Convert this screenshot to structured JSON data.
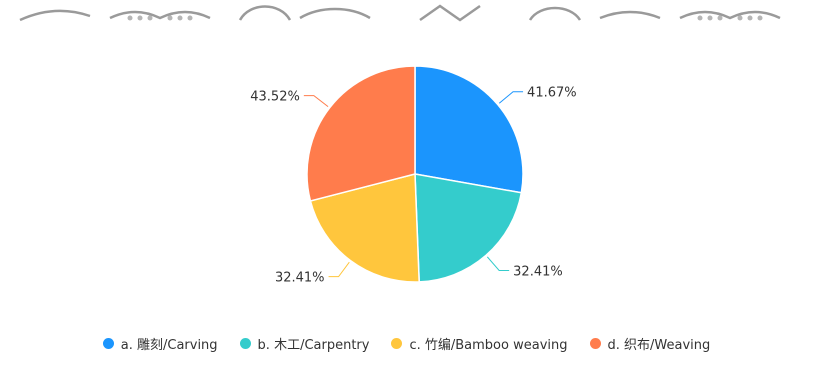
{
  "chart_data": {
    "type": "pie",
    "slices": [
      {
        "name": "a. 雕刻/Carving",
        "value": 41.67,
        "label": "41.67%",
        "color": "#1b95fd"
      },
      {
        "name": "b. 木工/Carpentry",
        "value": 32.41,
        "label": "32.41%",
        "color": "#34cccc"
      },
      {
        "name": "c. 竹编/Bamboo weaving",
        "value": 32.41,
        "label": "32.41%",
        "color": "#ffc63d"
      },
      {
        "name": "d. 织布/Weaving",
        "value": 43.52,
        "label": "43.52%",
        "color": "#ff7c4c"
      }
    ],
    "legend_position": "bottom"
  }
}
